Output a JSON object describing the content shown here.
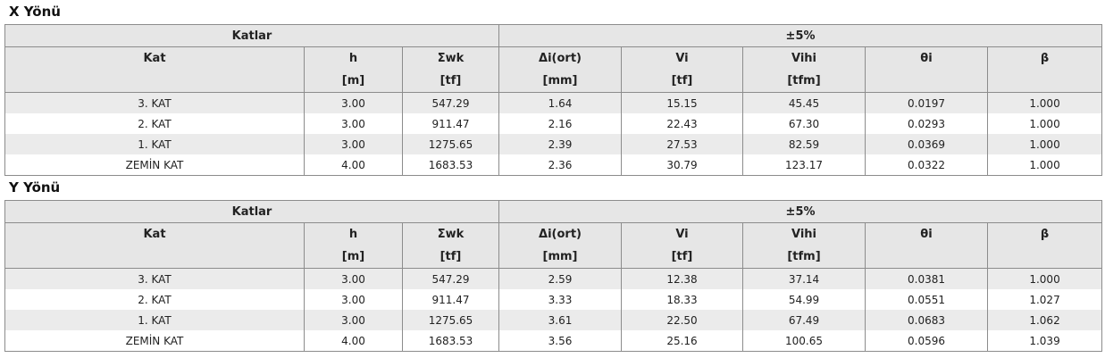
{
  "sections": [
    {
      "title": "X Yönü",
      "groups": [
        "Katlar",
        "±5%"
      ],
      "columns": [
        {
          "name": "Kat"
        },
        {
          "name": "h",
          "unit": "[m]"
        },
        {
          "name": "Σwk",
          "unit": "[tf]"
        },
        {
          "name": "Δi(ort)",
          "unit": "[mm]"
        },
        {
          "name": "Vi",
          "unit": "[tf]"
        },
        {
          "name": "Vihi",
          "unit": "[tfm]"
        },
        {
          "name": "θi"
        },
        {
          "name": "β"
        }
      ],
      "rows": [
        [
          "3. KAT",
          "3.00",
          "547.29",
          "1.64",
          "15.15",
          "45.45",
          "0.0197",
          "1.000"
        ],
        [
          "2. KAT",
          "3.00",
          "911.47",
          "2.16",
          "22.43",
          "67.30",
          "0.0293",
          "1.000"
        ],
        [
          "1. KAT",
          "3.00",
          "1275.65",
          "2.39",
          "27.53",
          "82.59",
          "0.0369",
          "1.000"
        ],
        [
          "ZEMİN KAT",
          "4.00",
          "1683.53",
          "2.36",
          "30.79",
          "123.17",
          "0.0322",
          "1.000"
        ]
      ]
    },
    {
      "title": "Y Yönü",
      "groups": [
        "Katlar",
        "±5%"
      ],
      "columns": [
        {
          "name": "Kat"
        },
        {
          "name": "h",
          "unit": "[m]"
        },
        {
          "name": "Σwk",
          "unit": "[tf]"
        },
        {
          "name": "Δi(ort)",
          "unit": "[mm]"
        },
        {
          "name": "Vi",
          "unit": "[tf]"
        },
        {
          "name": "Vihi",
          "unit": "[tfm]"
        },
        {
          "name": "θi"
        },
        {
          "name": "β"
        }
      ],
      "rows": [
        [
          "3. KAT",
          "3.00",
          "547.29",
          "2.59",
          "12.38",
          "37.14",
          "0.0381",
          "1.000"
        ],
        [
          "2. KAT",
          "3.00",
          "911.47",
          "3.33",
          "18.33",
          "54.99",
          "0.0551",
          "1.027"
        ],
        [
          "1. KAT",
          "3.00",
          "1275.65",
          "3.61",
          "22.50",
          "67.49",
          "0.0683",
          "1.062"
        ],
        [
          "ZEMİN KAT",
          "4.00",
          "1683.53",
          "3.56",
          "25.16",
          "100.65",
          "0.0596",
          "1.039"
        ]
      ]
    }
  ]
}
